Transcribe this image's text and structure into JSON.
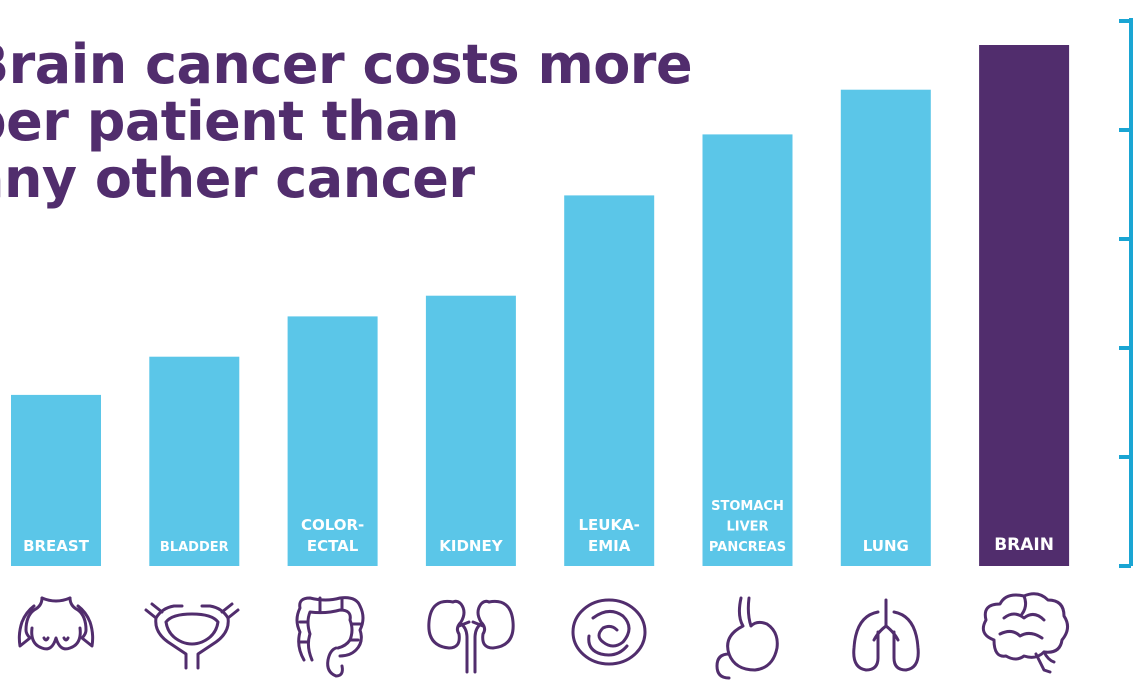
{
  "title_lines": [
    "Brain cancer costs more",
    "per patient than",
    "any other cancer"
  ],
  "colors": {
    "bar": "#5bc6e8",
    "highlight": "#512d6d",
    "axis": "#1aa5d3",
    "icon": "#512d6d",
    "title": "#512d6d"
  },
  "chart_data": {
    "type": "bar",
    "title": "Brain cancer costs more per patient than any other cancer",
    "categories": [
      "BREAST",
      "BLADDER",
      "COLOR-ECTAL",
      "KIDNEY",
      "LEUKA-EMIA",
      "STOMACH LIVER PANCREAS",
      "LUNG",
      "BRAIN"
    ],
    "category_label_lines": [
      [
        "BREAST"
      ],
      [
        "BLADDER"
      ],
      [
        "COLOR-",
        "ECTAL"
      ],
      [
        "KIDNEY"
      ],
      [
        "LEUKA-",
        "EMIA"
      ],
      [
        "STOMACH",
        "LIVER",
        "PANCREAS"
      ],
      [
        "LUNG"
      ],
      [
        "BRAIN"
      ]
    ],
    "values": [
      1.57,
      1.92,
      2.29,
      2.48,
      3.4,
      3.96,
      4.37,
      4.78
    ],
    "highlight": "BRAIN",
    "ylim": [
      0,
      5
    ],
    "y_ticks": [
      0,
      1,
      2,
      3,
      4,
      5
    ],
    "y_tick_labels_shown": false,
    "xlabel": "",
    "ylabel": "",
    "grid": false,
    "legend": "none",
    "icons": [
      "breast-icon",
      "bladder-icon",
      "colon-icon",
      "kidney-icon",
      "blood-cell-icon",
      "stomach-icon",
      "lung-icon",
      "brain-icon"
    ]
  }
}
